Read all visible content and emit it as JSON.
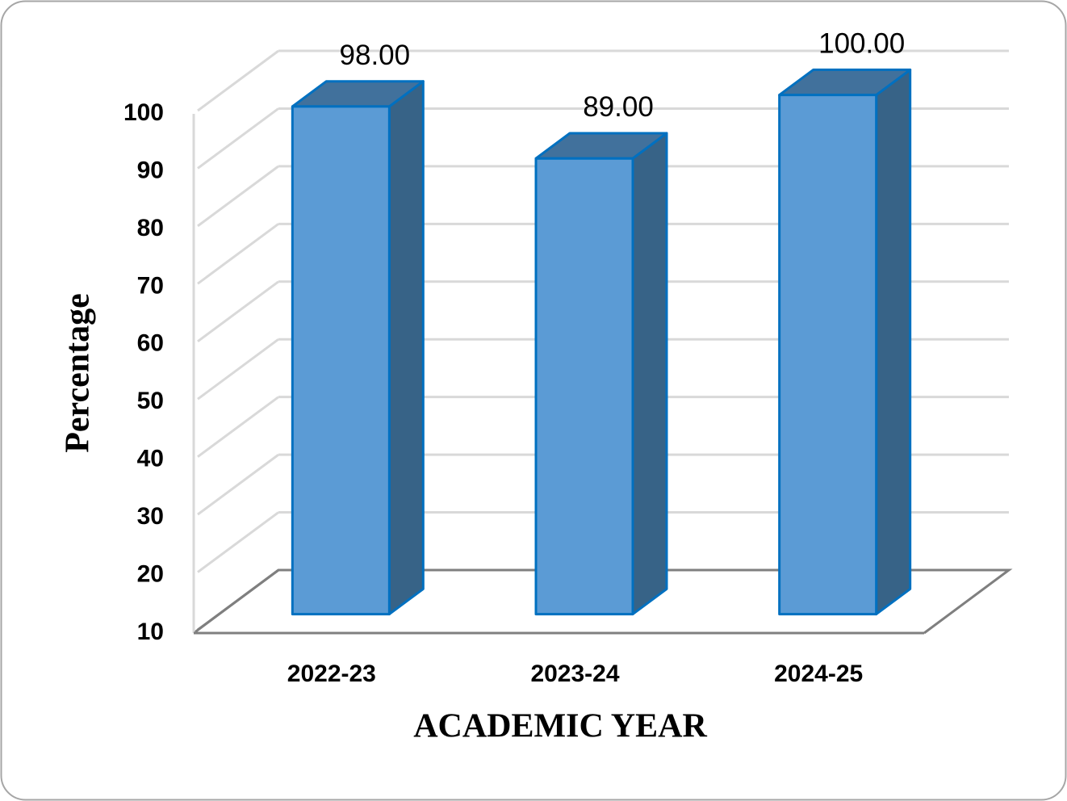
{
  "chart_data": {
    "type": "bar",
    "categories": [
      "2022-23",
      "2023-24",
      "2024-25"
    ],
    "values": [
      98,
      89,
      100
    ],
    "value_labels": [
      "98.00",
      "89.00",
      "100.00"
    ],
    "color": "#5b9bd5",
    "ylim": [
      10,
      100
    ],
    "yticks": [
      10,
      20,
      30,
      40,
      50,
      60,
      70,
      80,
      90,
      100
    ],
    "grid": true,
    "x_label": "ACADEMIC YEAR",
    "y_label": "Percentage"
  }
}
